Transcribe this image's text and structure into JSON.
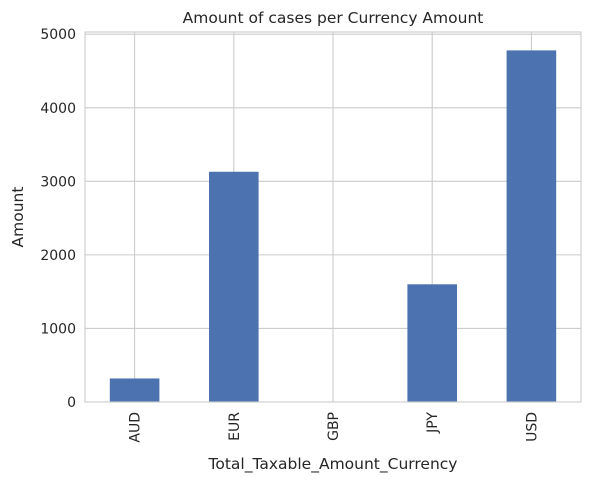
{
  "chart_data": {
    "type": "bar",
    "title": "Amount of cases per Currency Amount",
    "xlabel": "Total_Taxable_Amount_Currency",
    "ylabel": "Amount",
    "categories": [
      "AUD",
      "EUR",
      "GBP",
      "JPY",
      "USD"
    ],
    "values": [
      320,
      3130,
      0,
      1600,
      4780
    ],
    "ylim": [
      0,
      5030
    ],
    "yticks": [
      0,
      1000,
      2000,
      3000,
      4000,
      5000
    ],
    "ytick_labels": [
      "0",
      "1000",
      "2000",
      "3000",
      "4000",
      "5000"
    ],
    "grid": true,
    "legend": "none",
    "colors": {
      "bar": "#4c72b0",
      "grid": "#cccccc",
      "text": "#262626"
    }
  }
}
